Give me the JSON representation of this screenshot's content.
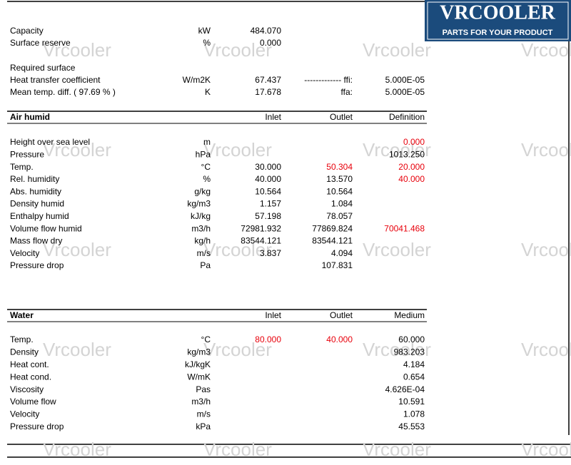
{
  "logo": {
    "name": "VRCOOLER",
    "tagline": "PARTS FOR YOUR PRODUCT"
  },
  "watermark": "Vrcooler",
  "summary": {
    "rows": [
      [
        "Capacity",
        "kW",
        "484.070",
        null,
        null
      ],
      [
        "Surface reserve",
        "%",
        "0.000",
        null,
        null
      ],
      [
        "Required surface",
        null,
        null,
        null,
        null
      ],
      [
        "Heat transfer coefficient",
        "W/m2K",
        "67.437",
        "------------- ffi:",
        "5.000E-05"
      ],
      [
        "Mean temp. diff. ( 97.69 % )",
        "K",
        "17.678",
        "ffa:",
        "5.000E-05"
      ]
    ]
  },
  "air": {
    "header": [
      "Air humid",
      null,
      "Inlet",
      "Outlet",
      "Definition"
    ],
    "rows": [
      [
        "Height over sea level",
        "m",
        null,
        null,
        {
          "text": "0.000",
          "color": "#e8000b"
        }
      ],
      [
        "Pressure",
        "hPa",
        null,
        null,
        "1013.250"
      ],
      [
        "Temp.",
        "°C",
        "30.000",
        {
          "text": "50.304",
          "color": "#e8000b"
        },
        {
          "text": "20.000",
          "color": "#e8000b"
        }
      ],
      [
        "Rel. humidity",
        "%",
        "40.000",
        "13.570",
        {
          "text": "40.000",
          "color": "#e8000b"
        }
      ],
      [
        "Abs. humidity",
        "g/kg",
        "10.564",
        "10.564",
        null
      ],
      [
        "Density humid",
        "kg/m3",
        "1.157",
        "1.084",
        null
      ],
      [
        "Enthalpy humid",
        "kJ/kg",
        "57.198",
        "78.057",
        null
      ],
      [
        "Volume flow humid",
        "m3/h",
        "72981.932",
        "77869.824",
        {
          "text": "70041.468",
          "color": "#e8000b"
        }
      ],
      [
        "Mass flow dry",
        "kg/h",
        "83544.121",
        "83544.121",
        null
      ],
      [
        "Velocity",
        "m/s",
        "3.837",
        "4.094",
        null
      ],
      [
        "Pressure drop",
        "Pa",
        null,
        "107.831",
        null
      ]
    ]
  },
  "water": {
    "header": [
      "Water",
      null,
      "Inlet",
      "Outlet",
      "Medium"
    ],
    "rows": [
      [
        "Temp.",
        "°C",
        {
          "text": "80.000",
          "color": "#e8000b"
        },
        {
          "text": "40.000",
          "color": "#e8000b"
        },
        "60.000"
      ],
      [
        "Density",
        "kg/m3",
        null,
        null,
        "983.203"
      ],
      [
        "Heat cont.",
        "kJ/kgK",
        null,
        null,
        "4.184"
      ],
      [
        "Heat cond.",
        "W/mK",
        null,
        null,
        "0.654"
      ],
      [
        "Viscosity",
        "Pas",
        null,
        null,
        "4.626E-04"
      ],
      [
        "Volume flow",
        "m3/h",
        null,
        null,
        "10.591"
      ],
      [
        "Velocity",
        "m/s",
        null,
        null,
        "1.078"
      ],
      [
        "Pressure drop",
        "kPa",
        null,
        null,
        "45.553"
      ]
    ]
  }
}
